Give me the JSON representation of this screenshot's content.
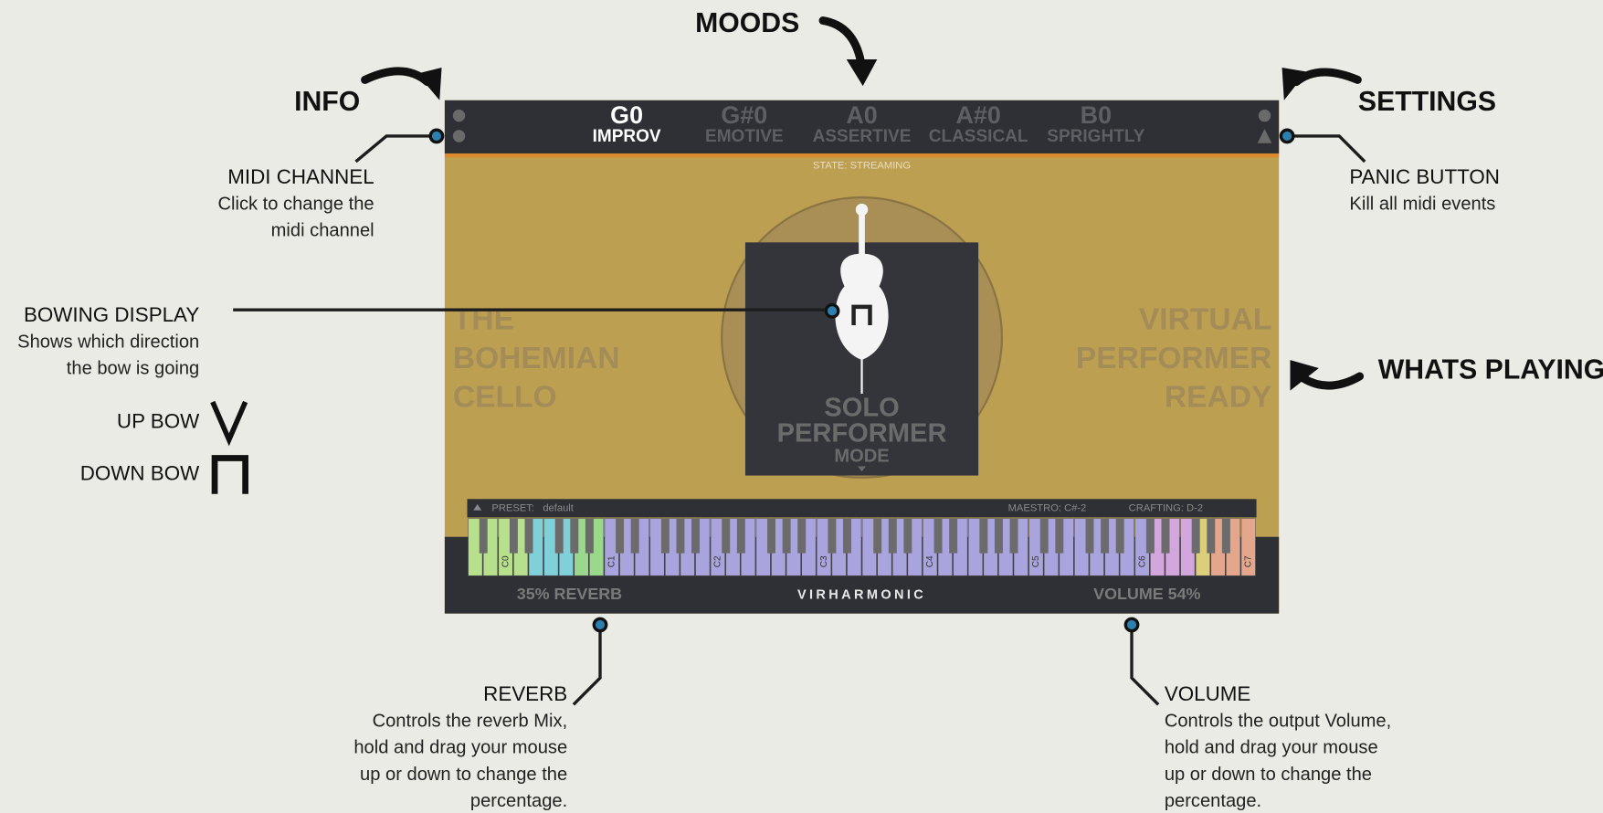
{
  "annotations": {
    "moods": {
      "title": "MOODS"
    },
    "info": {
      "title": "INFO"
    },
    "settings": {
      "title": "SETTINGS"
    },
    "midi_channel": {
      "title": "MIDI CHANNEL",
      "lines": [
        "Click to change the",
        "midi channel"
      ]
    },
    "panic_button": {
      "title": "PANIC BUTTON",
      "lines": [
        "Kill all midi events"
      ]
    },
    "bowing_display": {
      "title": "BOWING DISPLAY",
      "lines": [
        "Shows which direction",
        "the bow is going"
      ]
    },
    "up_bow": {
      "title": "UP BOW"
    },
    "down_bow": {
      "title": "DOWN BOW"
    },
    "whats_playing": {
      "title": "WHATS PLAYING"
    },
    "reverb": {
      "title": "REVERB",
      "lines": [
        "Controls the reverb Mix,",
        "hold and drag your mouse",
        "up or down to change the",
        "percentage."
      ]
    },
    "volume": {
      "title": "VOLUME",
      "lines": [
        "Controls the output Volume,",
        "hold and drag your mouse",
        "up or down to change the",
        "percentage."
      ]
    }
  },
  "plugin": {
    "moods": [
      {
        "note": "G0",
        "name": "IMPROV",
        "active": true
      },
      {
        "note": "G#0",
        "name": "EMOTIVE"
      },
      {
        "note": "A0",
        "name": "ASSERTIVE"
      },
      {
        "note": "A#0",
        "name": "CLASSICAL"
      },
      {
        "note": "B0",
        "name": "SPRIGHTLY"
      }
    ],
    "state": "STATE: STREAMING",
    "left_title": [
      "THE",
      "BOHEMIAN",
      "CELLO"
    ],
    "right_status": [
      "VIRTUAL",
      "PERFORMER",
      "READY"
    ],
    "mode": [
      "SOLO",
      "PERFORMER",
      "MODE"
    ],
    "preset_label": "PRESET:",
    "preset_value": "default",
    "maestro": "MAESTRO: C#-2",
    "crafting": "CRAFTING: D-2",
    "octaves": [
      "C0",
      "C1",
      "C2",
      "C3",
      "C4",
      "C5",
      "C6",
      "C7"
    ],
    "reverb": "35% REVERB",
    "brand": "VIRHARMONIC",
    "volume": "VOLUME 54%"
  }
}
